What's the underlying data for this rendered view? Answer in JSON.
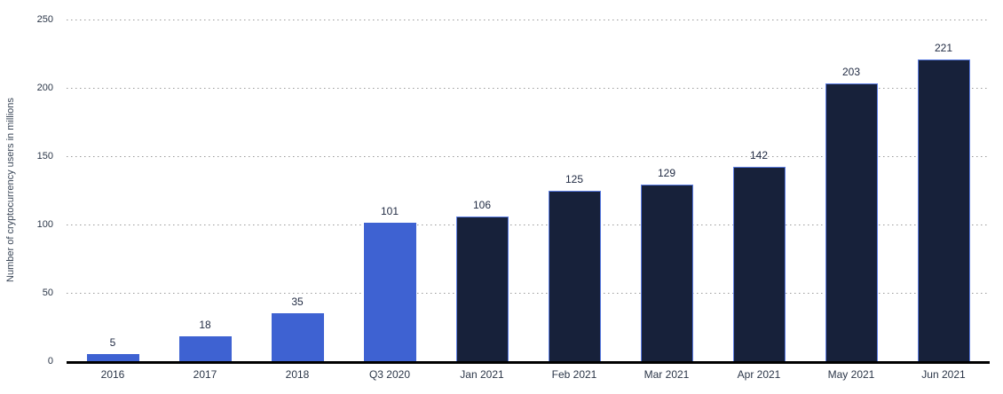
{
  "chart_data": {
    "type": "bar",
    "title": "",
    "xlabel": "",
    "ylabel": "Number of cryptocurrency users in millions",
    "categories": [
      "2016",
      "2017",
      "2018",
      "Q3 2020",
      "Jan 2021",
      "Feb 2021",
      "Mar 2021",
      "Apr 2021",
      "May 2021",
      "Jun 2021"
    ],
    "values": [
      5,
      18,
      35,
      101,
      106,
      125,
      129,
      142,
      203,
      221
    ],
    "bar_styles": [
      "highlight",
      "highlight",
      "highlight",
      "highlight",
      "dark",
      "dark",
      "dark",
      "dark",
      "dark",
      "dark"
    ],
    "ylim": [
      0,
      250
    ],
    "yticks": [
      0,
      50,
      100,
      150,
      200,
      250
    ],
    "grid": "horizontal-dotted",
    "legend": "none",
    "value_labels": "above-bars"
  },
  "colors": {
    "highlight_bar": "#3E62D2",
    "dark_bar": "#17213A",
    "dark_bar_border": "#5B7CE2",
    "grid_dot": "#9B9B9B",
    "axis_line": "#000000",
    "text": "#2B3648",
    "background": "#FFFFFF"
  }
}
